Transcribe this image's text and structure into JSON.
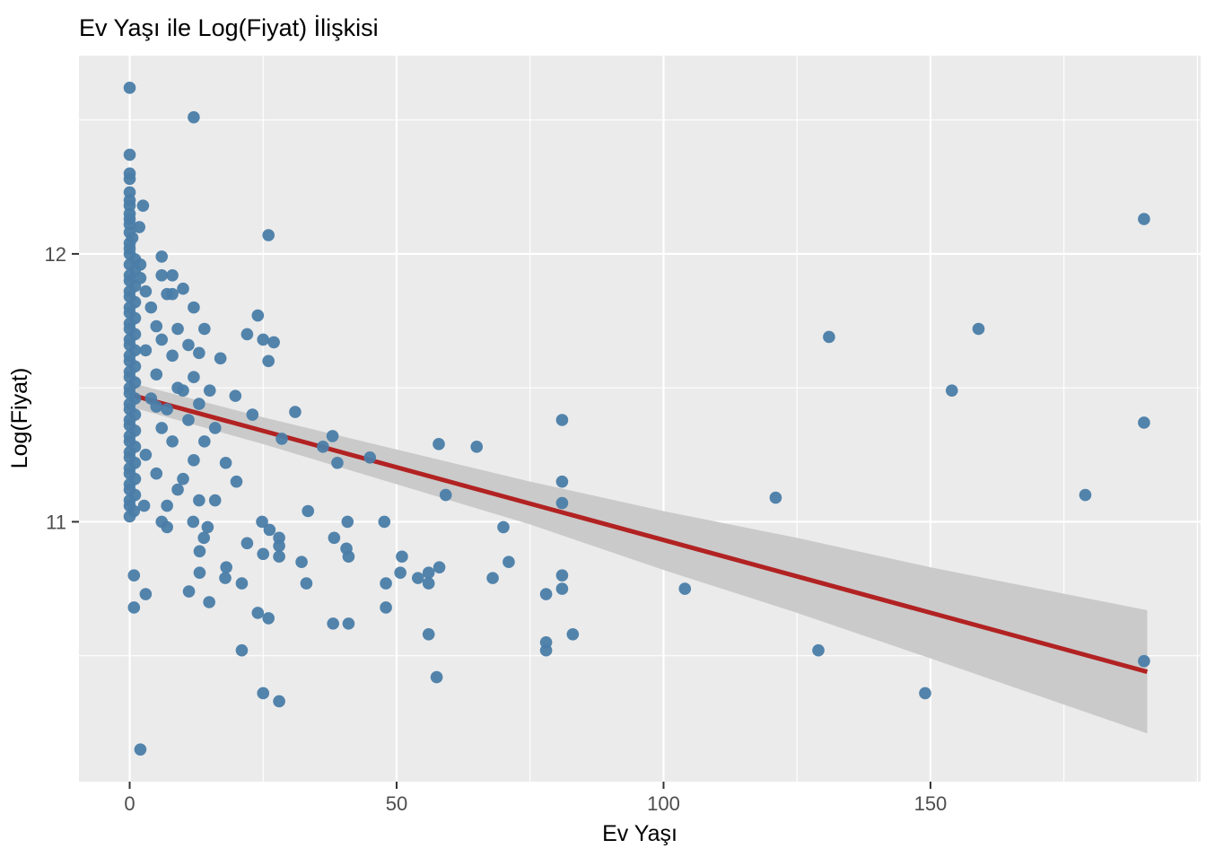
{
  "title": "Ev Yaşı ile Log(Fiyat) İlişkisi",
  "chart_data": {
    "type": "scatter",
    "title": "Ev Yaşı ile Log(Fiyat) İlişkisi",
    "xlabel": "Ev Yaşı",
    "ylabel": "Log(Fiyat)",
    "xlim": [
      -9.5,
      200.6
    ],
    "ylim": [
      10.03,
      12.74
    ],
    "x_major_ticks": [
      0,
      50,
      100,
      150
    ],
    "x_minor_ticks": [
      25,
      75,
      125,
      175,
      200
    ],
    "y_major_ticks": [
      11,
      12
    ],
    "y_minor_ticks": [
      10.5,
      11.5,
      12.5
    ],
    "grid": true,
    "legend": "none",
    "theme": {
      "panel_background": "#ebebeb",
      "grid_color": "#ffffff",
      "point_color": "#4a7da8",
      "regression_color": "#b22222",
      "band_color": "#cacaca",
      "tick_mark_color": "#333333",
      "tick_text_color": "#4d4d4d",
      "title_color": "#000000"
    },
    "regression_line": {
      "x": [
        0,
        190.6
      ],
      "y": [
        11.475,
        10.44
      ]
    },
    "confidence_band": {
      "x": [
        0,
        25,
        50,
        75,
        100,
        125,
        150,
        190.6
      ],
      "upper": [
        11.52,
        11.39,
        11.27,
        11.15,
        11.04,
        10.94,
        10.83,
        10.67
      ],
      "lower": [
        11.43,
        11.29,
        11.14,
        10.99,
        10.82,
        10.66,
        10.49,
        10.21
      ]
    },
    "points": [
      [
        0,
        12.62
      ],
      [
        0,
        12.37
      ],
      [
        0,
        12.3
      ],
      [
        0,
        12.28
      ],
      [
        0,
        12.23
      ],
      [
        0,
        12.2
      ],
      [
        0,
        12.18
      ],
      [
        2.5,
        12.18
      ],
      [
        0,
        12.15
      ],
      [
        0,
        12.13
      ],
      [
        0,
        12.11
      ],
      [
        1.8,
        12.1
      ],
      [
        0,
        12.08
      ],
      [
        0.5,
        12.06
      ],
      [
        0,
        12.04
      ],
      [
        0,
        12.02
      ],
      [
        0,
        12.0
      ],
      [
        1,
        11.98
      ],
      [
        0,
        11.96
      ],
      [
        1,
        11.94
      ],
      [
        0,
        11.92
      ],
      [
        0,
        11.9
      ],
      [
        1,
        11.88
      ],
      [
        0,
        11.86
      ],
      [
        0,
        11.84
      ],
      [
        1,
        11.82
      ],
      [
        0,
        11.8
      ],
      [
        0,
        11.78
      ],
      [
        1,
        11.76
      ],
      [
        0,
        11.74
      ],
      [
        0,
        11.72
      ],
      [
        1,
        11.7
      ],
      [
        0,
        11.68
      ],
      [
        0,
        11.66
      ],
      [
        1,
        11.64
      ],
      [
        0,
        11.62
      ],
      [
        0,
        11.6
      ],
      [
        1,
        11.58
      ],
      [
        0,
        11.56
      ],
      [
        0,
        11.54
      ],
      [
        1,
        11.52
      ],
      [
        0,
        11.5
      ],
      [
        0,
        11.48
      ],
      [
        1,
        11.46
      ],
      [
        0,
        11.44
      ],
      [
        0,
        11.42
      ],
      [
        1,
        11.4
      ],
      [
        0,
        11.38
      ],
      [
        0,
        11.36
      ],
      [
        1,
        11.34
      ],
      [
        0,
        11.32
      ],
      [
        0,
        11.3
      ],
      [
        1,
        11.28
      ],
      [
        0,
        11.26
      ],
      [
        0,
        11.24
      ],
      [
        1,
        11.22
      ],
      [
        0,
        11.2
      ],
      [
        0,
        11.18
      ],
      [
        1,
        11.16
      ],
      [
        0,
        11.14
      ],
      [
        0,
        11.12
      ],
      [
        1,
        11.1
      ],
      [
        0,
        11.08
      ],
      [
        0,
        11.06
      ],
      [
        0.8,
        11.04
      ],
      [
        0,
        11.02
      ],
      [
        2.7,
        11.06
      ],
      [
        0.8,
        10.8
      ],
      [
        0.8,
        10.68
      ],
      [
        3,
        10.73
      ],
      [
        2,
        10.15
      ],
      [
        6,
        11.99
      ],
      [
        2,
        11.96
      ],
      [
        6,
        11.92
      ],
      [
        2,
        11.91
      ],
      [
        3,
        11.86
      ],
      [
        7,
        11.85
      ],
      [
        8,
        11.85
      ],
      [
        4,
        11.8
      ],
      [
        8,
        11.92
      ],
      [
        5,
        11.73
      ],
      [
        9,
        11.72
      ],
      [
        6,
        11.68
      ],
      [
        3,
        11.64
      ],
      [
        8,
        11.62
      ],
      [
        5,
        11.55
      ],
      [
        9,
        11.5
      ],
      [
        4,
        11.46
      ],
      [
        5,
        11.43
      ],
      [
        7,
        11.42
      ],
      [
        6,
        11.35
      ],
      [
        8,
        11.3
      ],
      [
        3,
        11.25
      ],
      [
        5,
        11.18
      ],
      [
        9,
        11.12
      ],
      [
        7,
        11.06
      ],
      [
        6,
        11.0
      ],
      [
        7,
        10.98
      ],
      [
        12,
        12.51
      ],
      [
        26,
        12.07
      ],
      [
        24,
        11.77
      ],
      [
        26,
        11.6
      ],
      [
        10,
        11.87
      ],
      [
        12,
        11.8
      ],
      [
        14,
        11.72
      ],
      [
        22,
        11.7
      ],
      [
        25,
        11.68
      ],
      [
        27,
        11.67
      ],
      [
        17,
        11.61
      ],
      [
        11,
        11.66
      ],
      [
        13,
        11.63
      ],
      [
        12,
        11.54
      ],
      [
        10,
        11.49
      ],
      [
        15,
        11.49
      ],
      [
        13,
        11.44
      ],
      [
        23,
        11.4
      ],
      [
        11,
        11.38
      ],
      [
        14,
        11.3
      ],
      [
        12,
        11.23
      ],
      [
        10,
        11.16
      ],
      [
        13,
        11.08
      ],
      [
        19.8,
        11.47
      ],
      [
        16,
        11.35
      ],
      [
        18,
        11.22
      ],
      [
        20,
        11.15
      ],
      [
        16,
        11.08
      ],
      [
        11.9,
        11.0
      ],
      [
        14.6,
        10.98
      ],
      [
        13.9,
        10.94
      ],
      [
        13.1,
        10.89
      ],
      [
        13.1,
        10.81
      ],
      [
        18.1,
        10.83
      ],
      [
        17.9,
        10.79
      ],
      [
        21,
        10.77
      ],
      [
        11.1,
        10.74
      ],
      [
        14.9,
        10.7
      ],
      [
        22,
        10.92
      ],
      [
        21,
        10.52
      ],
      [
        24.8,
        11.0
      ],
      [
        26.2,
        10.97
      ],
      [
        28,
        10.94
      ],
      [
        28,
        10.91
      ],
      [
        25,
        10.88
      ],
      [
        28,
        10.87
      ],
      [
        32.2,
        10.85
      ],
      [
        33.1,
        10.77
      ],
      [
        24,
        10.66
      ],
      [
        26,
        10.64
      ],
      [
        25,
        10.36
      ],
      [
        28,
        10.33
      ],
      [
        28.5,
        11.31
      ],
      [
        31,
        11.41
      ],
      [
        33.4,
        11.04
      ],
      [
        38,
        11.32
      ],
      [
        36.2,
        11.28
      ],
      [
        38.9,
        11.22
      ],
      [
        45,
        11.24
      ],
      [
        38.3,
        10.94
      ],
      [
        40.6,
        10.9
      ],
      [
        41,
        10.87
      ],
      [
        38.1,
        10.62
      ],
      [
        41,
        10.62
      ],
      [
        40.8,
        11.0
      ],
      [
        47.7,
        11.0
      ],
      [
        48,
        10.77
      ],
      [
        48,
        10.68
      ],
      [
        51,
        10.87
      ],
      [
        50.7,
        10.81
      ],
      [
        54,
        10.79
      ],
      [
        56,
        10.81
      ],
      [
        56,
        10.77
      ],
      [
        56,
        10.58
      ],
      [
        57.9,
        11.29
      ],
      [
        59.2,
        11.1
      ],
      [
        58,
        10.83
      ],
      [
        57.5,
        10.42
      ],
      [
        65,
        11.28
      ],
      [
        68,
        10.79
      ],
      [
        70,
        10.98
      ],
      [
        71,
        10.85
      ],
      [
        78,
        10.73
      ],
      [
        78,
        10.55
      ],
      [
        78,
        10.52
      ],
      [
        83,
        10.58
      ],
      [
        81,
        11.38
      ],
      [
        81,
        11.15
      ],
      [
        81,
        11.07
      ],
      [
        81,
        10.8
      ],
      [
        81,
        10.75
      ],
      [
        104,
        10.75
      ],
      [
        121,
        11.09
      ],
      [
        129,
        10.52
      ],
      [
        131,
        11.69
      ],
      [
        149,
        10.36
      ],
      [
        154,
        11.49
      ],
      [
        159,
        11.72
      ],
      [
        179,
        11.1
      ],
      [
        190,
        12.13
      ],
      [
        190,
        11.37
      ],
      [
        190,
        10.48
      ]
    ]
  }
}
